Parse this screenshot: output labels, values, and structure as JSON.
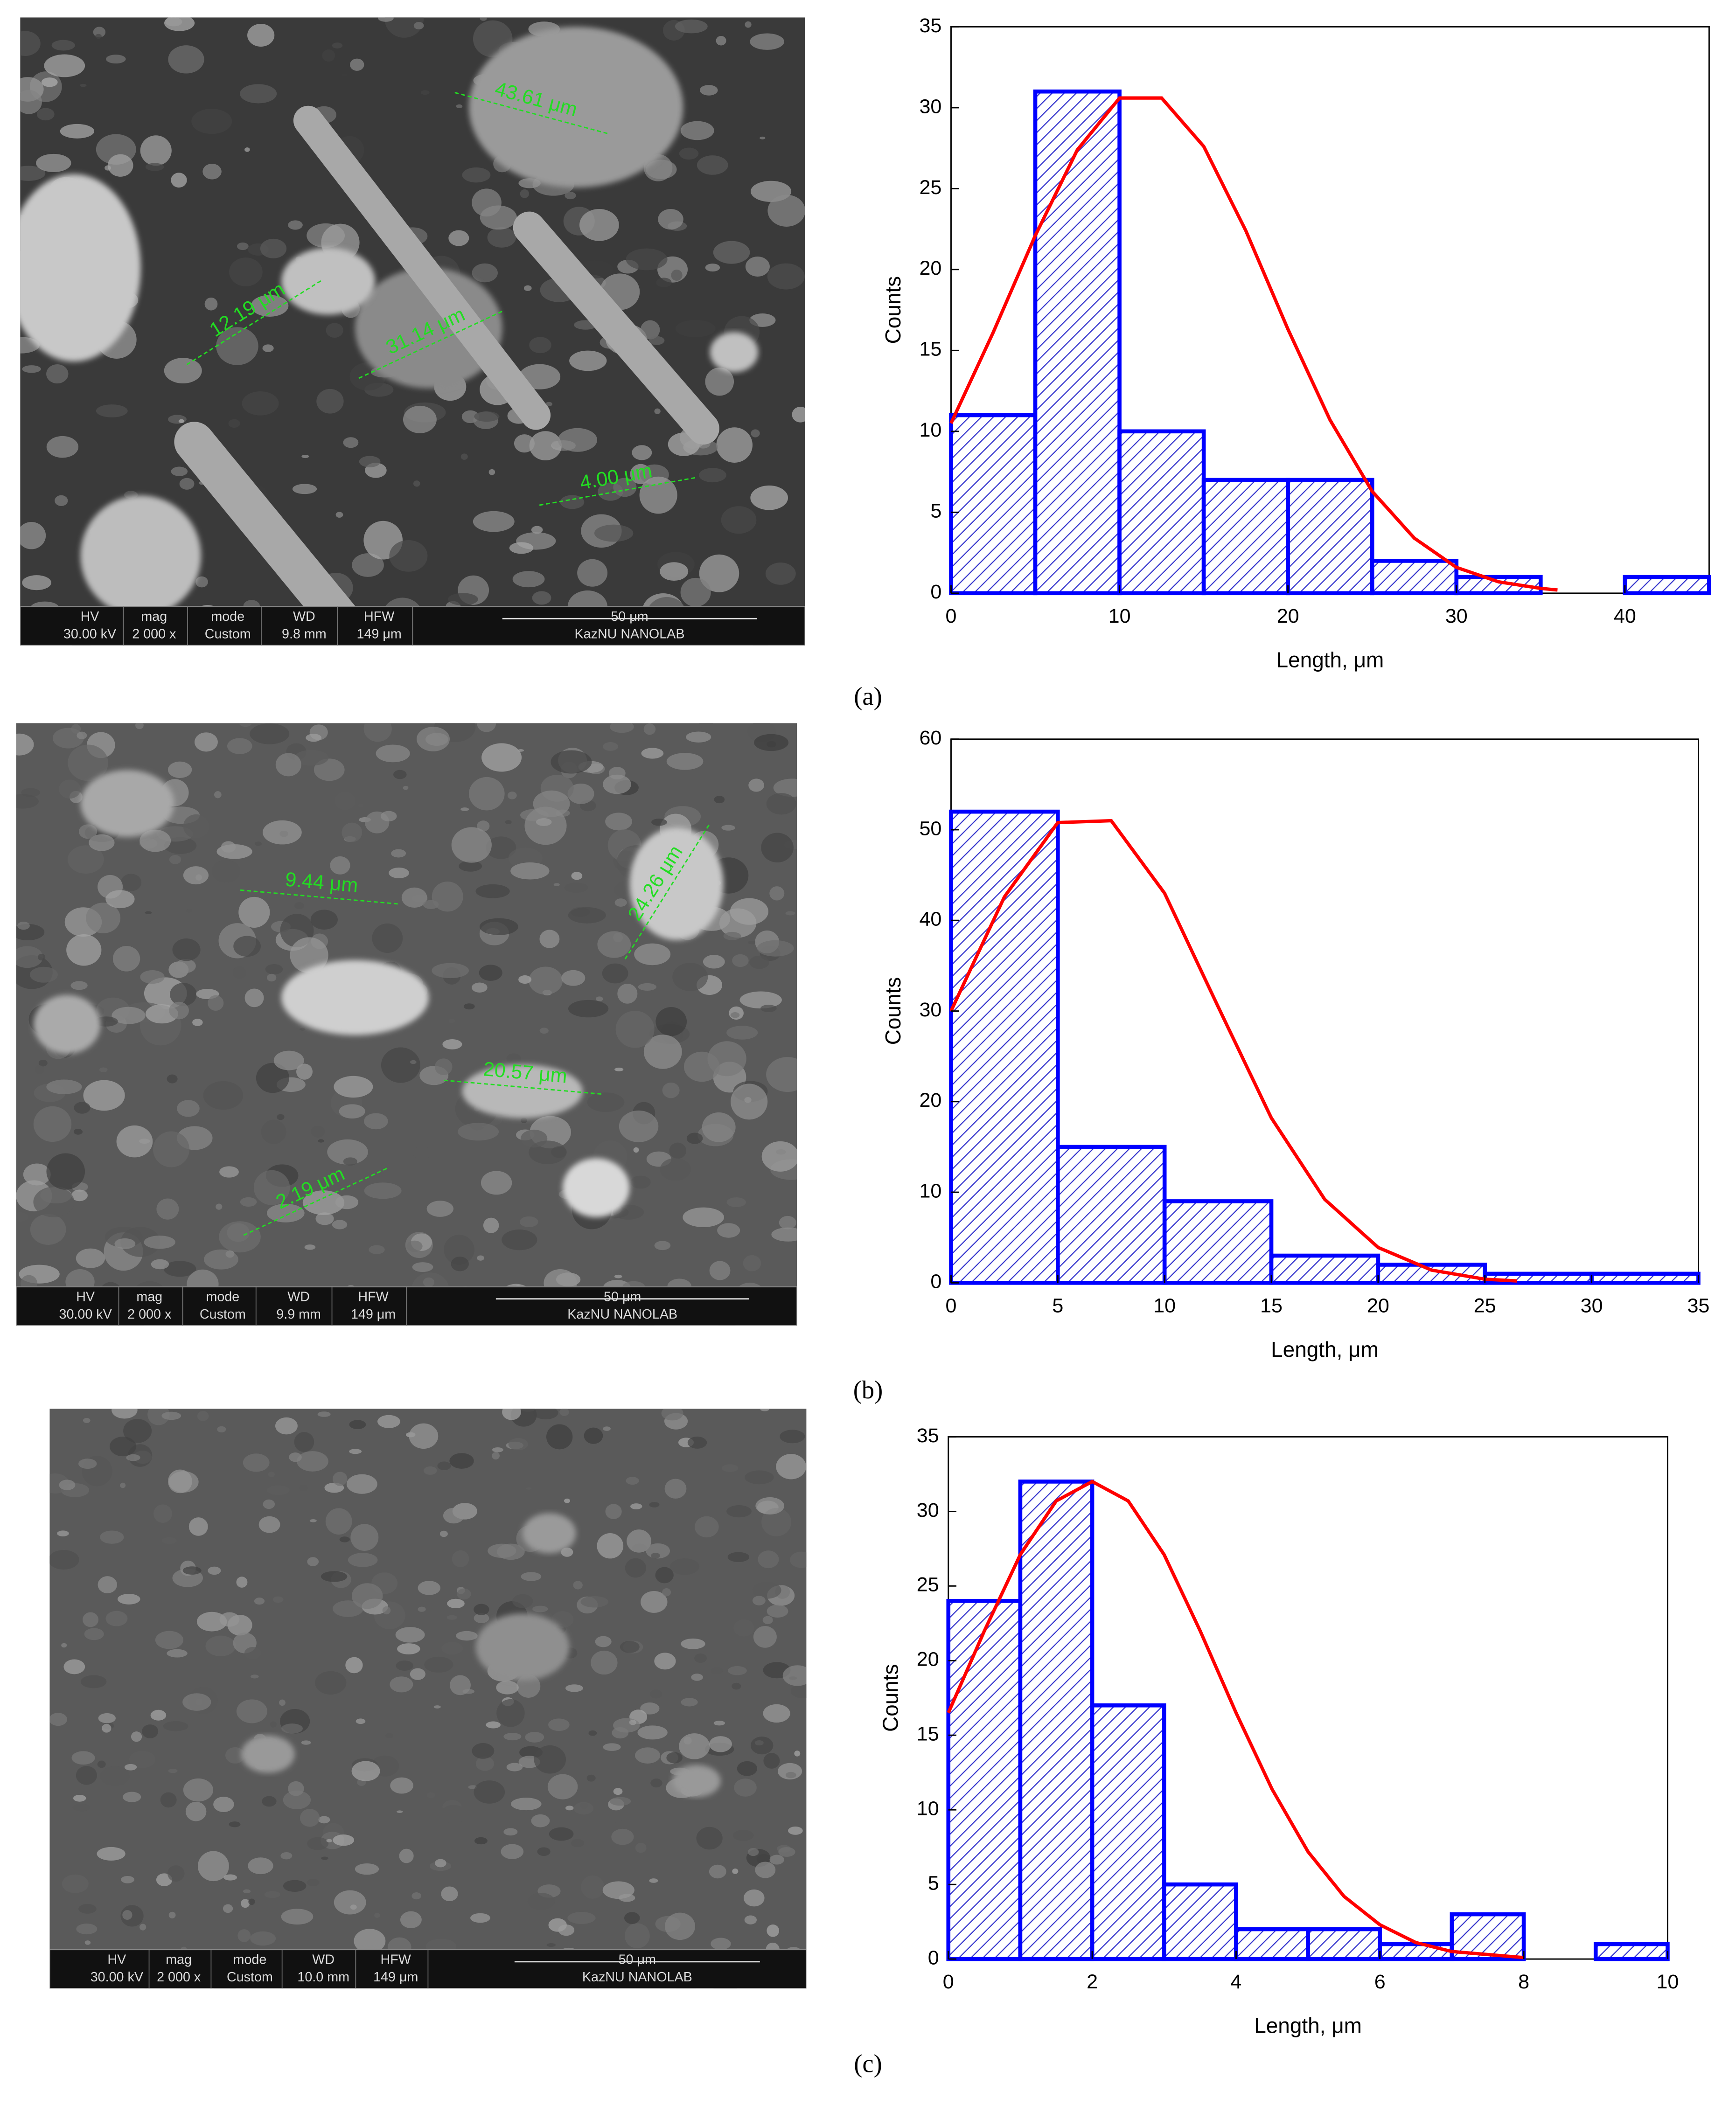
{
  "chart_data": [
    {
      "type": "histogram",
      "xlabel": "Length, μm",
      "ylabel": "Counts",
      "color": "#0000ff",
      "bins": [
        0,
        5,
        10,
        15,
        20,
        25,
        30,
        35,
        40,
        45
      ],
      "values": [
        11,
        31,
        10,
        7,
        7,
        2,
        1,
        0,
        1
      ],
      "xlim": [
        0,
        45
      ],
      "xticks": [
        0,
        10,
        20,
        30,
        40
      ],
      "ylim": [
        0,
        35
      ],
      "yticks": [
        0,
        5,
        10,
        15,
        20,
        25,
        30,
        35
      ],
      "fit": {
        "color": "#ff0000",
        "x": [
          0,
          2.5,
          5,
          7.5,
          10,
          12.5,
          15,
          17.5,
          20,
          22.5,
          25,
          27.5,
          30,
          32.5,
          35,
          36
        ],
        "values": [
          10.5,
          16.1,
          22.1,
          27.4,
          30.6,
          30.6,
          27.6,
          22.4,
          16.3,
          10.7,
          6.3,
          3.4,
          1.6,
          0.7,
          0.3,
          0.2
        ]
      }
    },
    {
      "type": "histogram",
      "xlabel": "Length, μm",
      "ylabel": "Counts",
      "color": "#0000ff",
      "bins": [
        0,
        5,
        10,
        15,
        20,
        25,
        30,
        35
      ],
      "values": [
        52,
        15,
        9,
        3,
        2,
        1,
        1
      ],
      "xlim": [
        0,
        35
      ],
      "xticks": [
        0,
        5,
        10,
        15,
        20,
        25,
        30,
        35
      ],
      "ylim": [
        0,
        60
      ],
      "yticks": [
        0,
        10,
        20,
        30,
        40,
        50,
        60
      ],
      "fit": {
        "color": "#ff0000",
        "x": [
          0,
          2.5,
          5,
          7.5,
          10,
          12.5,
          15,
          17.5,
          20,
          22.5,
          25,
          26.5
        ],
        "values": [
          30.0,
          42.6,
          50.8,
          51.0,
          43.0,
          30.5,
          18.2,
          9.2,
          3.9,
          1.4,
          0.4,
          0.2
        ]
      }
    },
    {
      "type": "histogram",
      "xlabel": "Length, μm",
      "ylabel": "Counts",
      "color": "#0000ff",
      "bins": [
        0,
        1,
        2,
        3,
        4,
        5,
        6,
        7,
        8,
        9,
        10
      ],
      "values": [
        24,
        32,
        17,
        5,
        2,
        2,
        1,
        3,
        0,
        1
      ],
      "xlim": [
        0,
        10
      ],
      "xticks": [
        0,
        2,
        4,
        6,
        8,
        10
      ],
      "ylim": [
        0,
        35
      ],
      "yticks": [
        0,
        5,
        10,
        15,
        20,
        25,
        30,
        35
      ],
      "fit": {
        "color": "#ff0000",
        "x": [
          0,
          0.5,
          1,
          1.5,
          2,
          2.5,
          3,
          3.5,
          4,
          4.5,
          5,
          5.5,
          6,
          6.5,
          7,
          8
        ],
        "values": [
          16.5,
          22.0,
          27.1,
          30.7,
          32,
          30.7,
          27.1,
          22.0,
          16.5,
          11.4,
          7.2,
          4.2,
          2.3,
          1.1,
          0.5,
          0.1
        ]
      }
    }
  ],
  "panels": [
    {
      "label": "(a)",
      "sem": {
        "annotations": [
          "43.61 μm",
          "12.19 μm",
          "31.14 μm",
          "4.00 μm"
        ],
        "headers": [
          "HV",
          "mag",
          "mode",
          "WD",
          "HFW"
        ],
        "settings": [
          "30.00 kV",
          "2 000 x",
          "Custom",
          "9.8 mm",
          "149 μm"
        ],
        "scale": "50 μm",
        "lab": "KazNU NANOLAB"
      }
    },
    {
      "label": "(b)",
      "sem": {
        "annotations": [
          "9.44 μm",
          "24.26 μm",
          "20.57 μm",
          "2.19 μm"
        ],
        "headers": [
          "HV",
          "mag",
          "mode",
          "WD",
          "HFW"
        ],
        "settings": [
          "30.00 kV",
          "2 000 x",
          "Custom",
          "9.9 mm",
          "149 μm"
        ],
        "scale": "50 μm",
        "lab": "KazNU NANOLAB"
      }
    },
    {
      "label": "(c)",
      "sem": {
        "headers": [
          "HV",
          "mag",
          "mode",
          "WD",
          "HFW"
        ],
        "settings": [
          "30.00 kV",
          "2 000 x",
          "Custom",
          "10.0 mm",
          "149 μm"
        ],
        "scale": "50 μm",
        "lab": "KazNU NANOLAB"
      }
    }
  ]
}
